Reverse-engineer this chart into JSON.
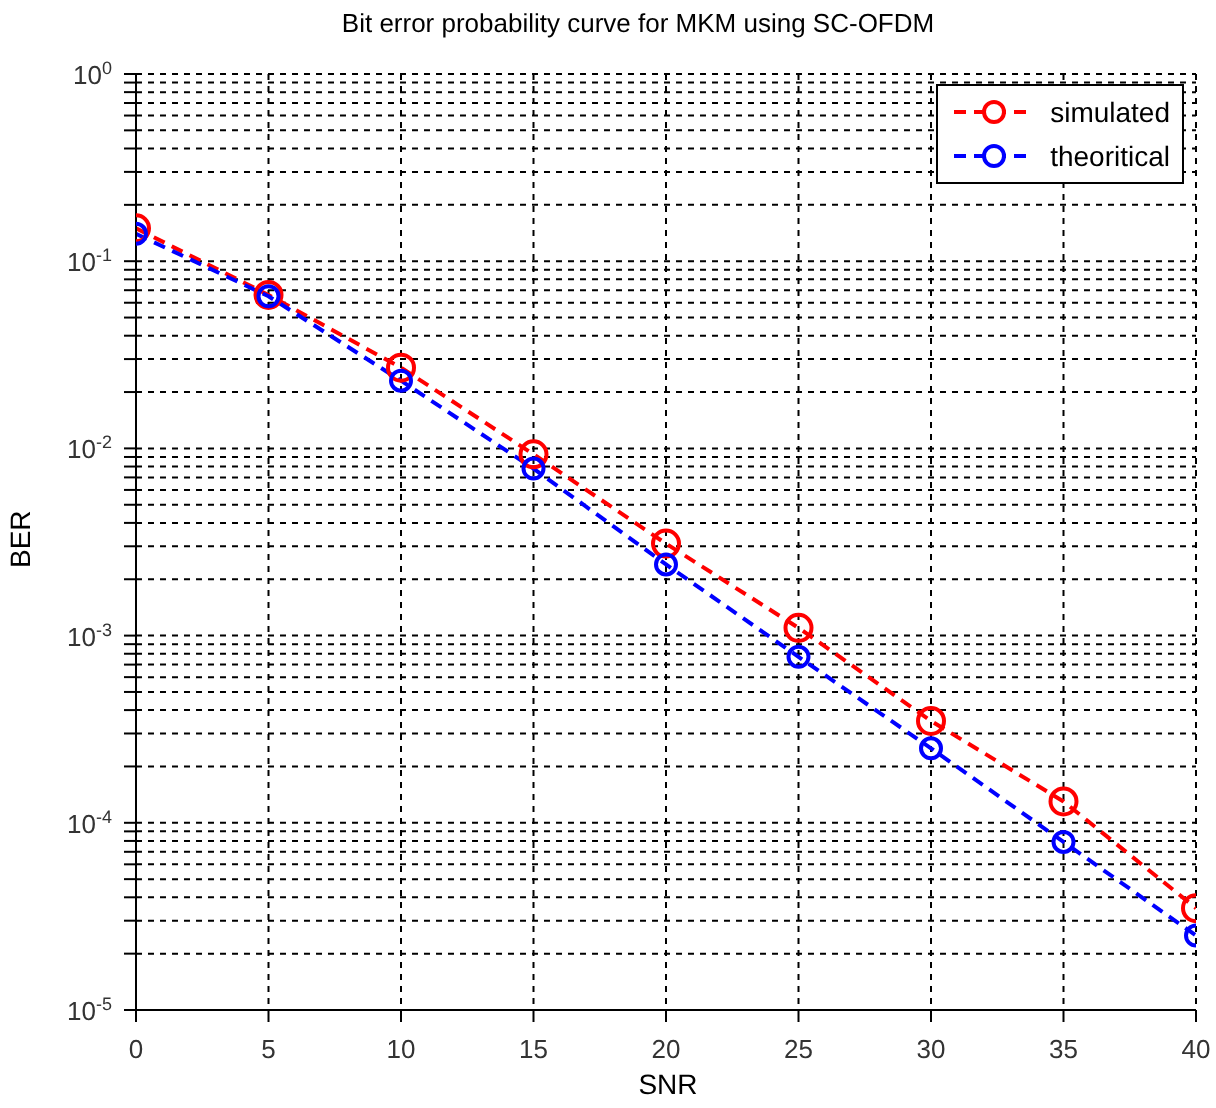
{
  "chart_data": {
    "type": "line",
    "title": "Bit error probability curve for MKM using SC-OFDM",
    "xlabel": "SNR",
    "ylabel": "BER",
    "x": [
      0,
      5,
      10,
      15,
      20,
      25,
      30,
      35,
      40
    ],
    "series": [
      {
        "name": "simulated",
        "color": "#ff0000",
        "values": [
          0.15,
          0.066,
          0.027,
          0.0093,
          0.0031,
          0.0011,
          0.00035,
          0.00013,
          3.5e-05
        ]
      },
      {
        "name": "theoritical",
        "color": "#0000ff",
        "values": [
          0.14,
          0.065,
          0.023,
          0.0078,
          0.0024,
          0.00077,
          0.00025,
          7.9e-05,
          2.5e-05
        ]
      }
    ],
    "log": "y",
    "xlim": [
      0,
      40
    ],
    "xticks": [
      0,
      5,
      10,
      15,
      20,
      25,
      30,
      35,
      40
    ],
    "ylim": [
      1e-05,
      1
    ],
    "yticks": [
      {
        "value": 1e-05,
        "label": "10$^{-5}$"
      },
      {
        "value": 2e-05,
        "label": null
      },
      {
        "value": 3e-05,
        "label": null
      },
      {
        "value": 4e-05,
        "label": null
      },
      {
        "value": 5e-05,
        "label": null
      },
      {
        "value": 6e-05,
        "label": null
      },
      {
        "value": 7e-05,
        "label": null
      },
      {
        "value": 8e-05,
        "label": null
      },
      {
        "value": 9e-05,
        "label": null
      },
      {
        "value": 0.0001,
        "label": "10$^{-4}$"
      },
      {
        "value": 0.0002,
        "label": null
      },
      {
        "value": 0.0003,
        "label": null
      },
      {
        "value": 0.0004,
        "label": null
      },
      {
        "value": 0.0005,
        "label": null
      },
      {
        "value": 0.0006,
        "label": null
      },
      {
        "value": 0.0007,
        "label": null
      },
      {
        "value": 0.0008,
        "label": null
      },
      {
        "value": 0.0009,
        "label": null
      },
      {
        "value": 0.001,
        "label": "10$^{-3}$"
      },
      {
        "value": 0.002,
        "label": null
      },
      {
        "value": 0.003,
        "label": null
      },
      {
        "value": 0.004,
        "label": null
      },
      {
        "value": 0.005,
        "label": null
      },
      {
        "value": 0.006,
        "label": null
      },
      {
        "value": 0.007,
        "label": null
      },
      {
        "value": 0.008,
        "label": null
      },
      {
        "value": 0.009,
        "label": null
      },
      {
        "value": 0.01,
        "label": "10$^{-2}$"
      },
      {
        "value": 0.02,
        "label": null
      },
      {
        "value": 0.03,
        "label": null
      },
      {
        "value": 0.04,
        "label": null
      },
      {
        "value": 0.05,
        "label": null
      },
      {
        "value": 0.06,
        "label": null
      },
      {
        "value": 0.07,
        "label": null
      },
      {
        "value": 0.08,
        "label": null
      },
      {
        "value": 0.09,
        "label": null
      },
      {
        "value": 0.1,
        "label": "10$^{-1}$"
      },
      {
        "value": 0.2,
        "label": null
      },
      {
        "value": 0.3,
        "label": null
      },
      {
        "value": 0.4,
        "label": null
      },
      {
        "value": 0.5,
        "label": null
      },
      {
        "value": 0.6,
        "label": null
      },
      {
        "value": 0.7,
        "label": null
      },
      {
        "value": 0.8,
        "label": null
      },
      {
        "value": 0.9,
        "label": null
      },
      {
        "value": 1,
        "label": "10$^{0}$"
      }
    ],
    "grid": true,
    "legend": "top right",
    "marker": "circle",
    "line_style": "dashed"
  }
}
